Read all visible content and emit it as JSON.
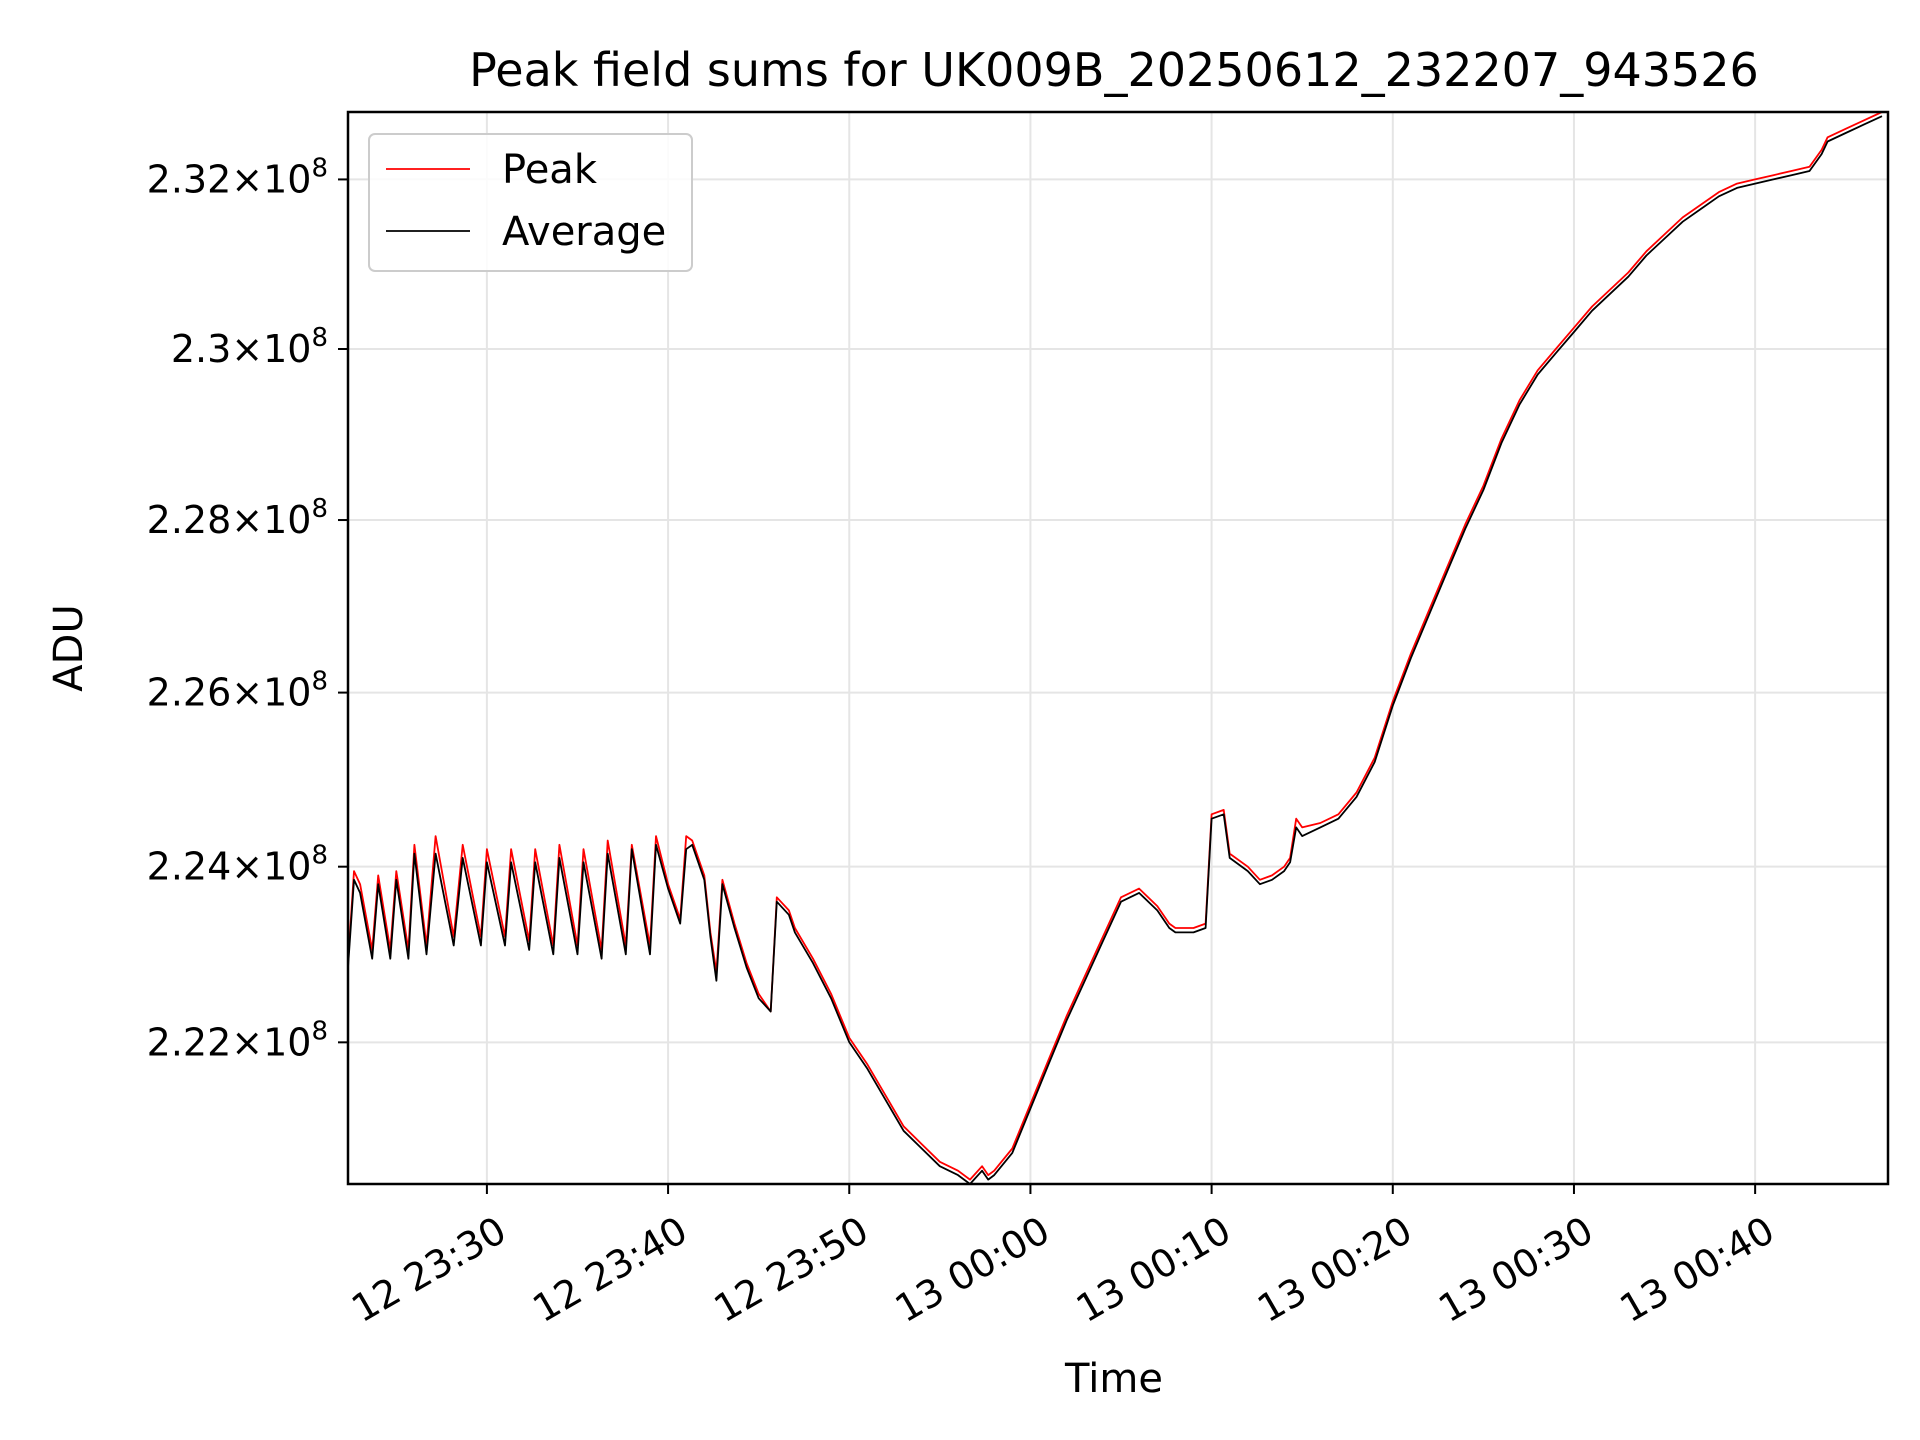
{
  "chart_data": {
    "type": "line",
    "title": "Peak field sums for UK009B_20250612_232207_943526",
    "xlabel": "Time",
    "ylabel": "ADU",
    "xlim": [
      "12 23:22:20",
      "13 00:47:20"
    ],
    "ylim": [
      220400000,
      232800000
    ],
    "y_scale": "log",
    "grid": true,
    "legend": "upper left",
    "xticks": [
      "12 23:30",
      "12 23:40",
      "12 23:50",
      "13 00:00",
      "13 00:10",
      "13 00:20",
      "13 00:30",
      "13 00:40"
    ],
    "yticks": [
      {
        "value": 222000000,
        "mantissa": "2.22",
        "exp": "8"
      },
      {
        "value": 224000000,
        "mantissa": "2.24",
        "exp": "8"
      },
      {
        "value": 226000000,
        "mantissa": "2.26",
        "exp": "8"
      },
      {
        "value": 228000000,
        "mantissa": "2.28",
        "exp": "8"
      },
      {
        "value": 230000000,
        "mantissa": "2.3",
        "exp": "8"
      },
      {
        "value": 232000000,
        "mantissa": "2.32",
        "exp": "8"
      }
    ],
    "series": [
      {
        "name": "Peak",
        "color": "#ff0000",
        "points": [
          [
            "12 23:22:20",
            222.9
          ],
          [
            "12 23:22:40",
            223.95
          ],
          [
            "12 23:23:00",
            223.8
          ],
          [
            "12 23:23:40",
            223.05
          ],
          [
            "12 23:24:00",
            223.9
          ],
          [
            "12 23:24:40",
            223.05
          ],
          [
            "12 23:25:00",
            223.95
          ],
          [
            "12 23:25:40",
            223.05
          ],
          [
            "12 23:26:00",
            224.25
          ],
          [
            "12 23:26:40",
            223.1
          ],
          [
            "12 23:27:10",
            224.35
          ],
          [
            "12 23:28:10",
            223.2
          ],
          [
            "12 23:28:40",
            224.25
          ],
          [
            "12 23:29:40",
            223.2
          ],
          [
            "12 23:30:00",
            224.2
          ],
          [
            "12 23:31:00",
            223.2
          ],
          [
            "12 23:31:20",
            224.2
          ],
          [
            "12 23:32:20",
            223.15
          ],
          [
            "12 23:32:40",
            224.2
          ],
          [
            "12 23:33:40",
            223.1
          ],
          [
            "12 23:34:00",
            224.25
          ],
          [
            "12 23:35:00",
            223.1
          ],
          [
            "12 23:35:20",
            224.2
          ],
          [
            "12 23:36:20",
            223.05
          ],
          [
            "12 23:36:40",
            224.3
          ],
          [
            "12 23:37:40",
            223.1
          ],
          [
            "12 23:38:00",
            224.25
          ],
          [
            "12 23:39:00",
            223.1
          ],
          [
            "12 23:39:20",
            224.35
          ],
          [
            "12 23:40:00",
            223.8
          ],
          [
            "12 23:40:40",
            223.4
          ],
          [
            "12 23:41:00",
            224.35
          ],
          [
            "12 23:41:20",
            224.3
          ],
          [
            "12 23:42:00",
            223.9
          ],
          [
            "12 23:42:20",
            223.25
          ],
          [
            "12 23:42:40",
            222.8
          ],
          [
            "12 23:43:00",
            223.85
          ],
          [
            "12 23:43:40",
            223.35
          ],
          [
            "12 23:44:20",
            222.9
          ],
          [
            "12 23:45:00",
            222.55
          ],
          [
            "12 23:45:40",
            222.35
          ],
          [
            "12 23:46:00",
            223.65
          ],
          [
            "12 23:46:40",
            223.5
          ],
          [
            "12 23:47:00",
            223.3
          ],
          [
            "12 23:48:00",
            222.95
          ],
          [
            "12 23:49:00",
            222.55
          ],
          [
            "12 23:50:00",
            222.05
          ],
          [
            "12 23:51:00",
            221.75
          ],
          [
            "12 23:52:00",
            221.4
          ],
          [
            "12 23:53:00",
            221.05
          ],
          [
            "12 23:54:00",
            220.85
          ],
          [
            "12 23:55:00",
            220.65
          ],
          [
            "12 23:56:00",
            220.55
          ],
          [
            "12 23:56:40",
            220.45
          ],
          [
            "12 23:57:20",
            220.6
          ],
          [
            "12 23:57:40",
            220.5
          ],
          [
            "12 23:58:00",
            220.55
          ],
          [
            "12 23:59:00",
            220.8
          ],
          [
            "13 00:00:00",
            221.3
          ],
          [
            "13 00:01:00",
            221.8
          ],
          [
            "13 00:02:00",
            222.3
          ],
          [
            "13 00:03:00",
            222.75
          ],
          [
            "13 00:04:00",
            223.2
          ],
          [
            "13 00:05:00",
            223.65
          ],
          [
            "13 00:06:00",
            223.75
          ],
          [
            "13 00:07:00",
            223.55
          ],
          [
            "13 00:07:40",
            223.35
          ],
          [
            "13 00:08:00",
            223.3
          ],
          [
            "13 00:09:00",
            223.3
          ],
          [
            "13 00:09:40",
            223.35
          ],
          [
            "13 00:10:00",
            224.6
          ],
          [
            "13 00:10:40",
            224.65
          ],
          [
            "13 00:11:00",
            224.15
          ],
          [
            "13 00:12:00",
            224.0
          ],
          [
            "13 00:12:40",
            223.85
          ],
          [
            "13 00:13:20",
            223.9
          ],
          [
            "13 00:14:00",
            224.0
          ],
          [
            "13 00:14:20",
            224.1
          ],
          [
            "13 00:14:40",
            224.55
          ],
          [
            "13 00:15:00",
            224.45
          ],
          [
            "13 00:16:00",
            224.5
          ],
          [
            "13 00:17:00",
            224.6
          ],
          [
            "13 00:18:00",
            224.85
          ],
          [
            "13 00:19:00",
            225.25
          ],
          [
            "13 00:20:00",
            225.9
          ],
          [
            "13 00:21:00",
            226.45
          ],
          [
            "13 00:22:00",
            226.95
          ],
          [
            "13 00:23:00",
            227.45
          ],
          [
            "13 00:24:00",
            227.95
          ],
          [
            "13 00:25:00",
            228.4
          ],
          [
            "13 00:26:00",
            228.95
          ],
          [
            "13 00:27:00",
            229.4
          ],
          [
            "13 00:28:00",
            229.75
          ],
          [
            "13 00:29:00",
            230.0
          ],
          [
            "13 00:30:00",
            230.25
          ],
          [
            "13 00:31:00",
            230.5
          ],
          [
            "13 00:32:00",
            230.7
          ],
          [
            "13 00:33:00",
            230.9
          ],
          [
            "13 00:34:00",
            231.15
          ],
          [
            "13 00:35:00",
            231.35
          ],
          [
            "13 00:36:00",
            231.55
          ],
          [
            "13 00:37:00",
            231.7
          ],
          [
            "13 00:38:00",
            231.85
          ],
          [
            "13 00:39:00",
            231.95
          ],
          [
            "13 00:40:00",
            232.0
          ],
          [
            "13 00:41:00",
            232.05
          ],
          [
            "13 00:42:00",
            232.1
          ],
          [
            "13 00:43:00",
            232.15
          ],
          [
            "13 00:43:40",
            232.35
          ],
          [
            "13 00:44:00",
            232.5
          ],
          [
            "13 00:45:00",
            232.6
          ],
          [
            "13 00:46:00",
            232.7
          ],
          [
            "13 00:47:00",
            232.8
          ]
        ]
      },
      {
        "name": "Average",
        "color": "#000000",
        "points": [
          [
            "12 23:22:20",
            222.85
          ],
          [
            "12 23:22:40",
            223.85
          ],
          [
            "12 23:23:00",
            223.7
          ],
          [
            "12 23:23:40",
            222.95
          ],
          [
            "12 23:24:00",
            223.8
          ],
          [
            "12 23:24:40",
            222.95
          ],
          [
            "12 23:25:00",
            223.85
          ],
          [
            "12 23:25:40",
            222.95
          ],
          [
            "12 23:26:00",
            224.15
          ],
          [
            "12 23:26:40",
            223.0
          ],
          [
            "12 23:27:10",
            224.15
          ],
          [
            "12 23:28:10",
            223.1
          ],
          [
            "12 23:28:40",
            224.1
          ],
          [
            "12 23:29:40",
            223.1
          ],
          [
            "12 23:30:00",
            224.05
          ],
          [
            "12 23:31:00",
            223.1
          ],
          [
            "12 23:31:20",
            224.05
          ],
          [
            "12 23:32:20",
            223.05
          ],
          [
            "12 23:32:40",
            224.05
          ],
          [
            "12 23:33:40",
            223.0
          ],
          [
            "12 23:34:00",
            224.1
          ],
          [
            "12 23:35:00",
            223.0
          ],
          [
            "12 23:35:20",
            224.05
          ],
          [
            "12 23:36:20",
            222.95
          ],
          [
            "12 23:36:40",
            224.15
          ],
          [
            "12 23:37:40",
            223.0
          ],
          [
            "12 23:38:00",
            224.2
          ],
          [
            "12 23:39:00",
            223.0
          ],
          [
            "12 23:39:20",
            224.25
          ],
          [
            "12 23:40:00",
            223.75
          ],
          [
            "12 23:40:40",
            223.35
          ],
          [
            "12 23:41:00",
            224.2
          ],
          [
            "12 23:41:20",
            224.25
          ],
          [
            "12 23:42:00",
            223.85
          ],
          [
            "12 23:42:20",
            223.2
          ],
          [
            "12 23:42:40",
            222.7
          ],
          [
            "12 23:43:00",
            223.8
          ],
          [
            "12 23:43:40",
            223.3
          ],
          [
            "12 23:44:20",
            222.85
          ],
          [
            "12 23:45:00",
            222.5
          ],
          [
            "12 23:45:40",
            222.35
          ],
          [
            "12 23:46:00",
            223.6
          ],
          [
            "12 23:46:40",
            223.45
          ],
          [
            "12 23:47:00",
            223.25
          ],
          [
            "12 23:48:00",
            222.9
          ],
          [
            "12 23:49:00",
            222.5
          ],
          [
            "12 23:50:00",
            222.0
          ],
          [
            "12 23:51:00",
            221.7
          ],
          [
            "12 23:52:00",
            221.35
          ],
          [
            "12 23:53:00",
            221.0
          ],
          [
            "12 23:54:00",
            220.8
          ],
          [
            "12 23:55:00",
            220.6
          ],
          [
            "12 23:56:00",
            220.5
          ],
          [
            "12 23:56:40",
            220.4
          ],
          [
            "12 23:57:20",
            220.55
          ],
          [
            "12 23:57:40",
            220.45
          ],
          [
            "12 23:58:00",
            220.5
          ],
          [
            "12 23:59:00",
            220.75
          ],
          [
            "13 00:00:00",
            221.25
          ],
          [
            "13 00:01:00",
            221.75
          ],
          [
            "13 00:02:00",
            222.25
          ],
          [
            "13 00:03:00",
            222.7
          ],
          [
            "13 00:04:00",
            223.15
          ],
          [
            "13 00:05:00",
            223.6
          ],
          [
            "13 00:06:00",
            223.7
          ],
          [
            "13 00:07:00",
            223.5
          ],
          [
            "13 00:07:40",
            223.3
          ],
          [
            "13 00:08:00",
            223.25
          ],
          [
            "13 00:09:00",
            223.25
          ],
          [
            "13 00:09:40",
            223.3
          ],
          [
            "13 00:10:00",
            224.55
          ],
          [
            "13 00:10:40",
            224.6
          ],
          [
            "13 00:11:00",
            224.1
          ],
          [
            "13 00:12:00",
            223.95
          ],
          [
            "13 00:12:40",
            223.8
          ],
          [
            "13 00:13:20",
            223.85
          ],
          [
            "13 00:14:00",
            223.95
          ],
          [
            "13 00:14:20",
            224.05
          ],
          [
            "13 00:14:40",
            224.45
          ],
          [
            "13 00:15:00",
            224.35
          ],
          [
            "13 00:16:00",
            224.45
          ],
          [
            "13 00:17:00",
            224.55
          ],
          [
            "13 00:18:00",
            224.8
          ],
          [
            "13 00:19:00",
            225.2
          ],
          [
            "13 00:20:00",
            225.85
          ],
          [
            "13 00:21:00",
            226.4
          ],
          [
            "13 00:22:00",
            226.9
          ],
          [
            "13 00:23:00",
            227.4
          ],
          [
            "13 00:24:00",
            227.9
          ],
          [
            "13 00:25:00",
            228.35
          ],
          [
            "13 00:26:00",
            228.9
          ],
          [
            "13 00:27:00",
            229.35
          ],
          [
            "13 00:28:00",
            229.7
          ],
          [
            "13 00:29:00",
            229.95
          ],
          [
            "13 00:30:00",
            230.2
          ],
          [
            "13 00:31:00",
            230.45
          ],
          [
            "13 00:32:00",
            230.65
          ],
          [
            "13 00:33:00",
            230.85
          ],
          [
            "13 00:34:00",
            231.1
          ],
          [
            "13 00:35:00",
            231.3
          ],
          [
            "13 00:36:00",
            231.5
          ],
          [
            "13 00:37:00",
            231.65
          ],
          [
            "13 00:38:00",
            231.8
          ],
          [
            "13 00:39:00",
            231.9
          ],
          [
            "13 00:40:00",
            231.95
          ],
          [
            "13 00:41:00",
            232.0
          ],
          [
            "13 00:42:00",
            232.05
          ],
          [
            "13 00:43:00",
            232.1
          ],
          [
            "13 00:43:40",
            232.3
          ],
          [
            "13 00:44:00",
            232.45
          ],
          [
            "13 00:45:00",
            232.55
          ],
          [
            "13 00:46:00",
            232.65
          ],
          [
            "13 00:47:00",
            232.75
          ]
        ]
      }
    ]
  }
}
